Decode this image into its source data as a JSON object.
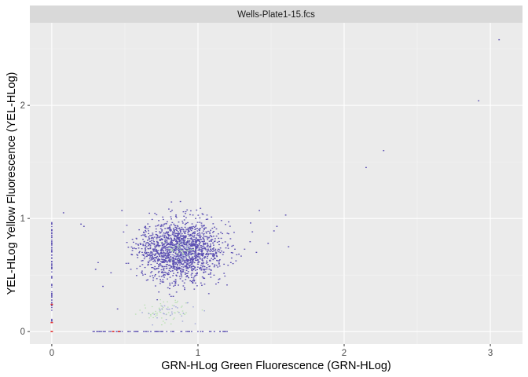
{
  "chart_data": {
    "type": "scatter",
    "facet_label": "Wells-Plate1-15.fcs",
    "xlabel": "GRN-HLog Green Fluorescence (GRN-HLog)",
    "ylabel": "YEL-HLog Yellow Fluorescence (YEL-HLog)",
    "xlim": [
      -0.15,
      3.22
    ],
    "ylim": [
      -0.11,
      2.73
    ],
    "x_ticks": [
      0,
      1,
      2,
      3
    ],
    "x_tick_labels": [
      "0",
      "1",
      "2",
      "3"
    ],
    "y_ticks": [
      0,
      1,
      2
    ],
    "y_tick_labels": [
      "0",
      "1",
      "2"
    ],
    "grid": true,
    "style": "density-colored scatter (ggplot2 gray theme)",
    "colors": {
      "panel_bg": "#ebebeb",
      "strip_bg": "#d9d9d9",
      "grid_major": "#ffffff",
      "grid_minor": "#f5f5f5",
      "point_main": "#5b4fb2",
      "point_dense": "#9aa0d8",
      "point_mid": "#b8e0b0",
      "point_high": "#e03030"
    },
    "main_cluster": {
      "center": [
        0.88,
        0.72
      ],
      "spread": [
        0.14,
        0.13
      ],
      "n": 1700
    },
    "low_cluster": {
      "center": [
        0.78,
        0.18
      ],
      "spread": [
        0.1,
        0.05
      ],
      "n": 90
    },
    "outliers": [
      [
        3.06,
        2.58
      ],
      [
        2.92,
        2.04
      ],
      [
        2.27,
        1.6
      ],
      [
        2.15,
        1.45
      ],
      [
        1.6,
        1.03
      ],
      [
        1.62,
        0.75
      ],
      [
        1.54,
        0.93
      ],
      [
        1.52,
        0.89
      ],
      [
        1.48,
        0.78
      ],
      [
        1.42,
        1.07
      ],
      [
        1.4,
        0.7
      ],
      [
        1.36,
        0.96
      ],
      [
        0.08,
        1.05
      ],
      [
        0.2,
        0.95
      ],
      [
        0.22,
        0.93
      ],
      [
        0.48,
        1.07
      ],
      [
        0.88,
        1.15
      ],
      [
        0.3,
        0.55
      ],
      [
        0.35,
        0.4
      ],
      [
        0.45,
        0.2
      ]
    ],
    "x_zero_column": {
      "x": 0.0,
      "y_range": [
        0.05,
        0.97
      ],
      "n": 80
    },
    "y_zero_row": {
      "y": 0.0,
      "x_range": [
        0.28,
        1.2
      ],
      "n": 70
    },
    "red_marks": [
      [
        0.0,
        0.24
      ],
      [
        0.0,
        0.0
      ],
      [
        0.42,
        0.0
      ],
      [
        0.46,
        0.0
      ],
      [
        0.0,
        0.08
      ]
    ]
  }
}
